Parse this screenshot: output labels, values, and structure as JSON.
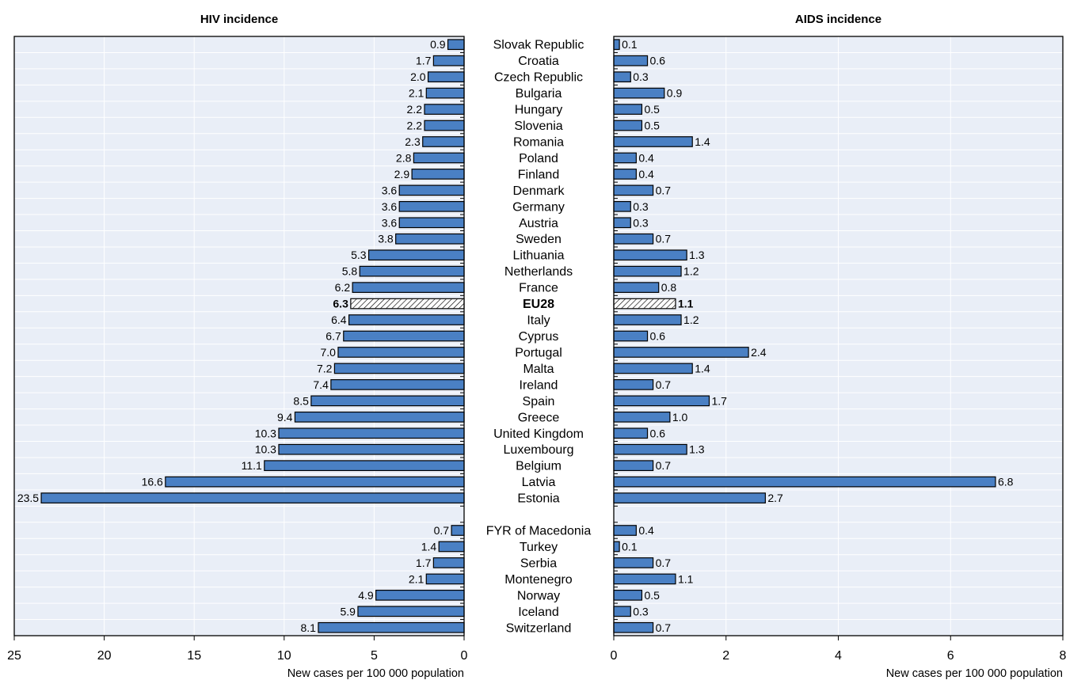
{
  "chart_data": [
    {
      "type": "bar",
      "orientation": "horizontal",
      "title": "HIV incidence",
      "xlabel": "New cases per 100 000 population",
      "xlim": [
        25,
        0
      ],
      "ticks": [
        25,
        20,
        15,
        10,
        5,
        0
      ],
      "grid": true,
      "categories": [
        "Slovak Republic",
        "Croatia",
        "Czech Republic",
        "Bulgaria",
        "Hungary",
        "Slovenia",
        "Romania",
        "Poland",
        "Finland",
        "Denmark",
        "Germany",
        "Austria",
        "Sweden",
        "Lithuania",
        "Netherlands",
        "France",
        "EU28",
        "Italy",
        "Cyprus",
        "Portugal",
        "Malta",
        "Ireland",
        "Spain",
        "Greece",
        "United Kingdom",
        "Luxembourg",
        "Belgium",
        "Latvia",
        "Estonia",
        "",
        "FYR of Macedonia",
        "Turkey",
        "Serbia",
        "Montenegro",
        "Norway",
        "Iceland",
        "Switzerland"
      ],
      "values": [
        0.9,
        1.7,
        2.0,
        2.1,
        2.2,
        2.2,
        2.3,
        2.8,
        2.9,
        3.6,
        3.6,
        3.6,
        3.8,
        5.3,
        5.8,
        6.2,
        6.3,
        6.4,
        6.7,
        7.0,
        7.2,
        7.4,
        8.5,
        9.4,
        10.3,
        10.3,
        11.1,
        16.6,
        23.5,
        null,
        0.7,
        1.4,
        1.7,
        2.1,
        4.9,
        5.9,
        8.1
      ],
      "value_labels": [
        "0.9",
        "1.7",
        "2.0",
        "2.1",
        "2.2",
        "2.2",
        "2.3",
        "2.8",
        "2.9",
        "3.6",
        "3.6",
        "3.6",
        "3.8",
        "5.3",
        "5.8",
        "6.2",
        "6.3",
        "6.4",
        "6.7",
        "7.0",
        "7.2",
        "7.4",
        "8.5",
        "9.4",
        "10.3",
        "10.3",
        "11.1",
        "16.6",
        "23.5",
        "",
        "0.7",
        "1.4",
        "1.7",
        "2.1",
        "4.9",
        "5.9",
        "8.1"
      ],
      "highlight": "EU28"
    },
    {
      "type": "bar",
      "orientation": "horizontal",
      "title": "AIDS incidence",
      "xlabel": "New cases per 100 000 population",
      "xlim": [
        0,
        8
      ],
      "ticks": [
        0,
        2,
        4,
        6,
        8
      ],
      "grid": true,
      "categories": [
        "Slovak Republic",
        "Croatia",
        "Czech Republic",
        "Bulgaria",
        "Hungary",
        "Slovenia",
        "Romania",
        "Poland",
        "Finland",
        "Denmark",
        "Germany",
        "Austria",
        "Sweden",
        "Lithuania",
        "Netherlands",
        "France",
        "EU28",
        "Italy",
        "Cyprus",
        "Portugal",
        "Malta",
        "Ireland",
        "Spain",
        "Greece",
        "United Kingdom",
        "Luxembourg",
        "Belgium",
        "Latvia",
        "Estonia",
        "",
        "FYR of Macedonia",
        "Turkey",
        "Serbia",
        "Montenegro",
        "Norway",
        "Iceland",
        "Switzerland"
      ],
      "values": [
        0.1,
        0.6,
        0.3,
        0.9,
        0.5,
        0.5,
        1.4,
        0.4,
        0.4,
        0.7,
        0.3,
        0.3,
        0.7,
        1.3,
        1.2,
        0.8,
        1.1,
        1.2,
        0.6,
        2.4,
        1.4,
        0.7,
        1.7,
        1.0,
        0.6,
        1.3,
        0.7,
        6.8,
        2.7,
        null,
        0.4,
        0.1,
        0.7,
        1.1,
        0.5,
        0.3,
        0.7
      ],
      "value_labels": [
        "0.1",
        "0.6",
        "0.3",
        "0.9",
        "0.5",
        "0.5",
        "1.4",
        "0.4",
        "0.4",
        "0.7",
        "0.3",
        "0.3",
        "0.7",
        "1.3",
        "1.2",
        "0.8",
        "1.1",
        "1.2",
        "0.6",
        "2.4",
        "1.4",
        "0.7",
        "1.7",
        "1.0",
        "0.6",
        "1.3",
        "0.7",
        "6.8",
        "2.7",
        "",
        "0.4",
        "0.1",
        "0.7",
        "1.1",
        "0.5",
        "0.3",
        "0.7"
      ],
      "highlight": "EU28"
    }
  ],
  "colors": {
    "bar": "#4a80c4",
    "bar_stroke": "#000000",
    "plot_bg": "#e9eef7",
    "grid": "#ffffff"
  }
}
